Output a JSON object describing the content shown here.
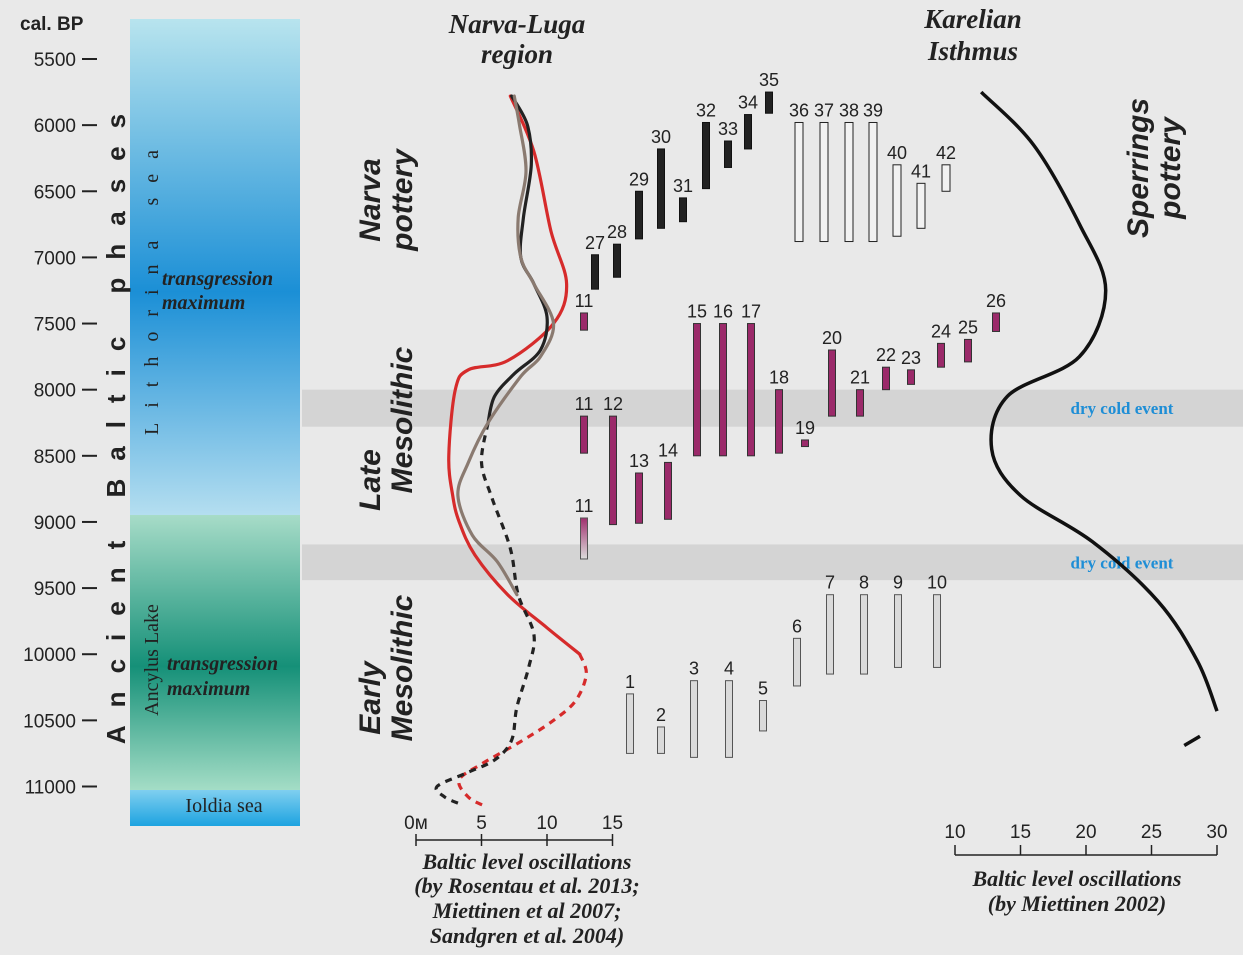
{
  "chart_data": {
    "type": "timeline-chart",
    "y_axis": {
      "label": "cal. BP",
      "range": [
        5500,
        11000
      ],
      "ticks": [
        "5500",
        "6000",
        "6500",
        "7000",
        "7500",
        "8000",
        "8500",
        "9000",
        "9500",
        "10000",
        "10500",
        "11000"
      ]
    },
    "phases": {
      "outer": "Ancient Baltic phases",
      "upper": "Lithorina sea",
      "lower": "Ancylus Lake",
      "bottom": "Ioldia sea",
      "transgression_upper": [
        "transgression",
        "maximum"
      ],
      "transgression_lower": [
        "transgression",
        "maximum"
      ]
    },
    "regions": {
      "left": [
        "Narva-Luga",
        "region"
      ],
      "right": [
        "Karelian",
        "Isthmus"
      ]
    },
    "cultures": {
      "narva": [
        "Narva",
        "pottery"
      ],
      "late": [
        "Late",
        "Mesolithic"
      ],
      "early": [
        "Early",
        "Mesolithic"
      ],
      "sperrings": [
        "Sperrings",
        "pottery"
      ]
    },
    "events": [
      {
        "label": "dry cold event",
        "from": 8000,
        "to": 8280
      },
      {
        "label": "dry cold event",
        "from": 9170,
        "to": 9440
      }
    ],
    "dates": [
      {
        "id": "1",
        "from": 10300,
        "to": 10750,
        "group": "early"
      },
      {
        "id": "2",
        "from": 10550,
        "to": 10750,
        "group": "early"
      },
      {
        "id": "3",
        "from": 10200,
        "to": 10780,
        "group": "early"
      },
      {
        "id": "4",
        "from": 10200,
        "to": 10780,
        "group": "early"
      },
      {
        "id": "5",
        "from": 10350,
        "to": 10580,
        "group": "early"
      },
      {
        "id": "6",
        "from": 9880,
        "to": 10240,
        "group": "early"
      },
      {
        "id": "7",
        "from": 9550,
        "to": 10150,
        "group": "early"
      },
      {
        "id": "8",
        "from": 9550,
        "to": 10150,
        "group": "early"
      },
      {
        "id": "9",
        "from": 9550,
        "to": 10100,
        "group": "early"
      },
      {
        "id": "10",
        "from": 9550,
        "to": 10100,
        "group": "early"
      },
      {
        "id": "11",
        "from": 8970,
        "to": 9280,
        "group": "late-faded"
      },
      {
        "id": "11",
        "from": 8200,
        "to": 8480,
        "group": "late"
      },
      {
        "id": "11",
        "from": 7420,
        "to": 7550,
        "group": "late"
      },
      {
        "id": "12",
        "from": 8200,
        "to": 9020,
        "group": "late"
      },
      {
        "id": "13",
        "from": 8630,
        "to": 9010,
        "group": "late"
      },
      {
        "id": "14",
        "from": 8550,
        "to": 8980,
        "group": "late"
      },
      {
        "id": "15",
        "from": 7500,
        "to": 8500,
        "group": "late"
      },
      {
        "id": "16",
        "from": 7500,
        "to": 8500,
        "group": "late"
      },
      {
        "id": "17",
        "from": 7500,
        "to": 8500,
        "group": "late"
      },
      {
        "id": "18",
        "from": 8000,
        "to": 8480,
        "group": "late"
      },
      {
        "id": "19",
        "from": 8380,
        "to": 8430,
        "group": "late"
      },
      {
        "id": "20",
        "from": 7700,
        "to": 8200,
        "group": "late"
      },
      {
        "id": "21",
        "from": 8000,
        "to": 8200,
        "group": "late"
      },
      {
        "id": "22",
        "from": 7830,
        "to": 8000,
        "group": "late"
      },
      {
        "id": "23",
        "from": 7850,
        "to": 7960,
        "group": "late"
      },
      {
        "id": "24",
        "from": 7650,
        "to": 7830,
        "group": "late"
      },
      {
        "id": "25",
        "from": 7620,
        "to": 7790,
        "group": "late"
      },
      {
        "id": "26",
        "from": 7420,
        "to": 7560,
        "group": "late"
      },
      {
        "id": "27",
        "from": 6980,
        "to": 7240,
        "group": "narva"
      },
      {
        "id": "28",
        "from": 6900,
        "to": 7150,
        "group": "narva"
      },
      {
        "id": "29",
        "from": 6500,
        "to": 6860,
        "group": "narva"
      },
      {
        "id": "30",
        "from": 6180,
        "to": 6780,
        "group": "narva"
      },
      {
        "id": "31",
        "from": 6550,
        "to": 6730,
        "group": "narva"
      },
      {
        "id": "32",
        "from": 5980,
        "to": 6480,
        "group": "narva"
      },
      {
        "id": "33",
        "from": 6120,
        "to": 6320,
        "group": "narva"
      },
      {
        "id": "34",
        "from": 5920,
        "to": 6180,
        "group": "narva"
      },
      {
        "id": "35",
        "from": 5750,
        "to": 5910,
        "group": "narva"
      },
      {
        "id": "36",
        "from": 5980,
        "to": 6880,
        "group": "narva-open"
      },
      {
        "id": "37",
        "from": 5980,
        "to": 6880,
        "group": "narva-open"
      },
      {
        "id": "38",
        "from": 5980,
        "to": 6880,
        "group": "narva-open"
      },
      {
        "id": "39",
        "from": 5980,
        "to": 6880,
        "group": "narva-open"
      },
      {
        "id": "40",
        "from": 6300,
        "to": 6840,
        "group": "narva-open"
      },
      {
        "id": "41",
        "from": 6440,
        "to": 6780,
        "group": "narva-open"
      },
      {
        "id": "42",
        "from": 6300,
        "to": 6500,
        "group": "narva-open"
      }
    ],
    "left_axis": {
      "ticks": [
        "0м",
        "5",
        "10",
        "15"
      ],
      "range": [
        0,
        15
      ],
      "caption": [
        "Baltic level oscillations",
        "(by Rosentau et al. 2013;",
        "Miettinen et al  2007;",
        "Sandgren et al. 2004)"
      ]
    },
    "right_axis": {
      "ticks": [
        "10",
        "15",
        "20",
        "25",
        "30"
      ],
      "range": [
        10,
        30
      ],
      "caption": [
        "Baltic level oscillations",
        "(by Miettinen 2002)"
      ]
    },
    "curves": [
      {
        "color": "#d62b2b",
        "points": [
          [
            7.2,
            5780
          ],
          [
            9,
            6200
          ],
          [
            10.3,
            6800
          ],
          [
            11.5,
            7200
          ],
          [
            10.5,
            7500
          ],
          [
            7,
            7780
          ],
          [
            4,
            7850
          ],
          [
            3,
            8000
          ],
          [
            2.5,
            8500
          ],
          [
            2.8,
            8800
          ],
          [
            3.3,
            9000
          ],
          [
            4.5,
            9250
          ],
          [
            7,
            9550
          ],
          [
            10,
            9800
          ],
          [
            12.5,
            10000
          ]
        ]
      },
      {
        "color": "#d62b2b",
        "dashed": true,
        "points": [
          [
            12.5,
            10000
          ],
          [
            13,
            10150
          ],
          [
            12.2,
            10350
          ],
          [
            10.5,
            10500
          ],
          [
            8,
            10660
          ],
          [
            5,
            10830
          ],
          [
            3.3,
            10950
          ],
          [
            4,
            11080
          ],
          [
            5.3,
            11150
          ]
        ]
      },
      {
        "color": "#222222",
        "points": [
          [
            7.3,
            5780
          ],
          [
            8.5,
            6000
          ],
          [
            8.8,
            6300
          ],
          [
            8.2,
            6700
          ],
          [
            8,
            7000
          ],
          [
            9,
            7200
          ],
          [
            10,
            7450
          ],
          [
            9.5,
            7700
          ],
          [
            7.5,
            7880
          ],
          [
            6,
            8050
          ],
          [
            5.5,
            8250
          ]
        ]
      },
      {
        "color": "#222222",
        "dashed": true,
        "points": [
          [
            5.5,
            8250
          ],
          [
            5,
            8550
          ],
          [
            5.8,
            8820
          ],
          [
            7.2,
            9200
          ],
          [
            7.8,
            9550
          ],
          [
            9,
            9850
          ],
          [
            8.6,
            10100
          ],
          [
            7.7,
            10400
          ],
          [
            7.3,
            10650
          ],
          [
            6,
            10800
          ],
          [
            3.8,
            10900
          ],
          [
            1.6,
            11000
          ],
          [
            2.2,
            11080
          ],
          [
            3.3,
            11130
          ]
        ]
      },
      {
        "color": "#8a7a70",
        "points": [
          [
            7.5,
            5780
          ],
          [
            7.9,
            6000
          ],
          [
            8.4,
            6350
          ],
          [
            7.8,
            6700
          ],
          [
            8,
            7000
          ],
          [
            9,
            7200
          ],
          [
            10.5,
            7500
          ],
          [
            9.5,
            7750
          ],
          [
            8,
            7900
          ],
          [
            5.5,
            8250
          ],
          [
            4,
            8550
          ],
          [
            3.2,
            8800
          ],
          [
            4.3,
            9100
          ],
          [
            6.2,
            9300
          ],
          [
            7.7,
            9550
          ]
        ]
      }
    ],
    "right_curve": {
      "color": "#111111",
      "points": [
        [
          12,
          5750
        ],
        [
          16,
          6150
        ],
        [
          19.5,
          6750
        ],
        [
          21.5,
          7250
        ],
        [
          19.5,
          7750
        ],
        [
          14,
          8050
        ],
        [
          12.8,
          8450
        ],
        [
          15,
          8800
        ],
        [
          20.5,
          9150
        ],
        [
          25.5,
          9600
        ],
        [
          28.5,
          10050
        ],
        [
          30,
          10430
        ]
      ],
      "fragment": [
        [
          27.5,
          10690
        ],
        [
          28.7,
          10620
        ]
      ]
    }
  }
}
